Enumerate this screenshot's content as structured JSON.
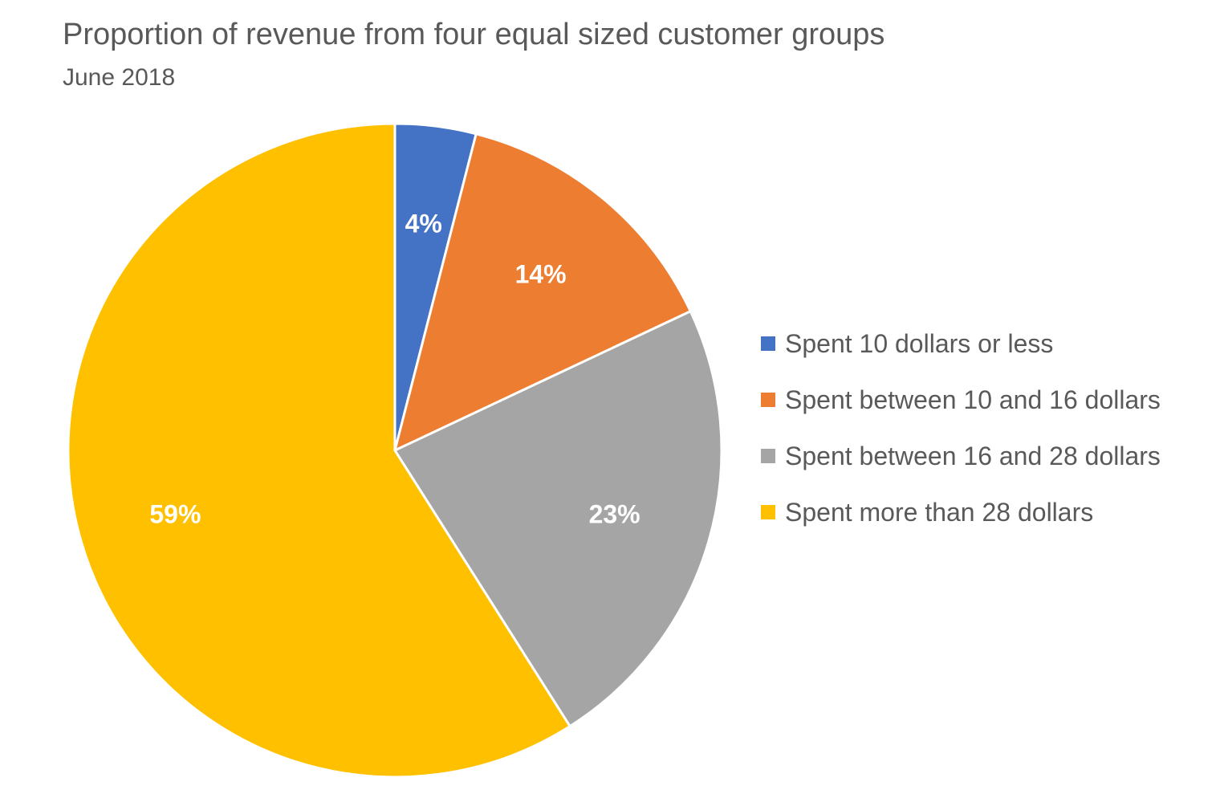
{
  "chart_data": {
    "type": "pie",
    "title": "Proportion of revenue from four equal sized customer groups",
    "subtitle": "June 2018",
    "legend_position": "right",
    "start_angle_deg": 0,
    "direction": "clockwise",
    "slices": [
      {
        "label": "Spent 10 dollars or less",
        "value": 4,
        "display": "4%",
        "color": "#4472C4"
      },
      {
        "label": "Spent between 10 and 16 dollars",
        "value": 14,
        "display": "14%",
        "color": "#ED7D31"
      },
      {
        "label": "Spent between 16 and 28 dollars",
        "value": 23,
        "display": "23%",
        "color": "#A5A5A5"
      },
      {
        "label": "Spent more than 28 dollars",
        "value": 59,
        "display": "59%",
        "color": "#FFC000"
      }
    ]
  }
}
